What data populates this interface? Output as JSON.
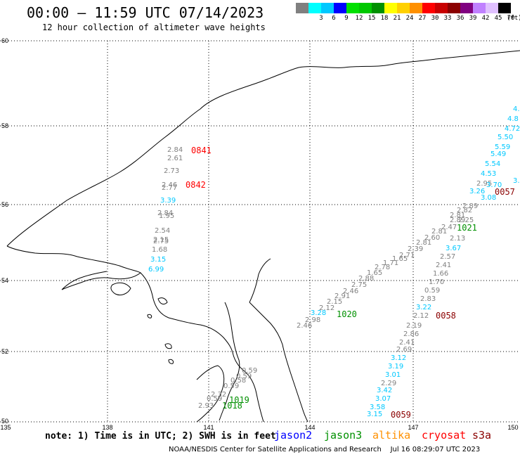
{
  "header": {
    "title": "00:00 – 11:59 UTC 07/14/2023",
    "subtitle": "12 hour collection of altimeter wave heights"
  },
  "legend_scale": {
    "unit": "(ft)",
    "bins": [
      {
        "color": "#808080",
        "label": ""
      },
      {
        "color": "#00ffff",
        "label": "3"
      },
      {
        "color": "#00c8ff",
        "label": "6"
      },
      {
        "color": "#0000ff",
        "label": "9"
      },
      {
        "color": "#00e000",
        "label": "12"
      },
      {
        "color": "#00c800",
        "label": "15"
      },
      {
        "color": "#009000",
        "label": "18"
      },
      {
        "color": "#ffff00",
        "label": "21"
      },
      {
        "color": "#ffd000",
        "label": "24"
      },
      {
        "color": "#ff9000",
        "label": "27"
      },
      {
        "color": "#ff0000",
        "label": "30"
      },
      {
        "color": "#c80000",
        "label": "33"
      },
      {
        "color": "#8b0000",
        "label": "36"
      },
      {
        "color": "#800080",
        "label": "39"
      },
      {
        "color": "#c080ff",
        "label": "42"
      },
      {
        "color": "#e0c0ff",
        "label": "45"
      },
      {
        "color": "#000000",
        "label": "70"
      }
    ]
  },
  "map": {
    "lon_labels": [
      "135",
      "138",
      "141",
      "144",
      "147",
      "150"
    ],
    "lat_labels": [
      "60",
      "58",
      "56",
      "54",
      "52",
      "50"
    ],
    "observations": [
      {
        "v": "2.84",
        "c": "#808080"
      },
      {
        "v": "2.61",
        "c": "#808080"
      },
      {
        "v": "2.73",
        "c": "#808080"
      },
      {
        "v": "2.46",
        "c": "#808080"
      },
      {
        "v": "2.77",
        "c": "#808080"
      },
      {
        "v": "3.39",
        "c": "#00c8ff"
      },
      {
        "v": "2.84",
        "c": "#808080"
      },
      {
        "v": "1.95",
        "c": "#808080"
      },
      {
        "v": "2.54",
        "c": "#808080"
      },
      {
        "v": "2.15",
        "c": "#808080"
      },
      {
        "v": "2.75",
        "c": "#808080"
      },
      {
        "v": "1.68",
        "c": "#808080"
      },
      {
        "v": "3.15",
        "c": "#00c8ff"
      },
      {
        "v": "6.99",
        "c": "#00c8ff"
      },
      {
        "v": "2.46",
        "c": "#808080"
      },
      {
        "v": "2.98",
        "c": "#808080"
      },
      {
        "v": "3.28",
        "c": "#00c8ff"
      },
      {
        "v": "2.12",
        "c": "#808080"
      },
      {
        "v": "2.15",
        "c": "#808080"
      },
      {
        "v": "2.91",
        "c": "#808080"
      },
      {
        "v": "2.46",
        "c": "#808080"
      },
      {
        "v": "2.75",
        "c": "#808080"
      },
      {
        "v": "2.88",
        "c": "#808080"
      },
      {
        "v": "1.65",
        "c": "#808080"
      },
      {
        "v": "2.78",
        "c": "#808080"
      },
      {
        "v": "1.71",
        "c": "#808080"
      },
      {
        "v": "1.65",
        "c": "#808080"
      },
      {
        "v": "2.71",
        "c": "#808080"
      },
      {
        "v": "2.39",
        "c": "#808080"
      },
      {
        "v": "2.81",
        "c": "#808080"
      },
      {
        "v": "2.60",
        "c": "#808080"
      },
      {
        "v": "2.81",
        "c": "#808080"
      },
      {
        "v": "2.47",
        "c": "#808080"
      },
      {
        "v": "2.89",
        "c": "#808080"
      },
      {
        "v": "2.25",
        "c": "#808080"
      },
      {
        "v": "2.81",
        "c": "#808080"
      },
      {
        "v": "2.82",
        "c": "#808080"
      },
      {
        "v": "2.89",
        "c": "#808080"
      },
      {
        "v": "2.95",
        "c": "#808080"
      },
      {
        "v": "3.26",
        "c": "#00c8ff"
      },
      {
        "v": "3.08",
        "c": "#00c8ff"
      },
      {
        "v": "3.70",
        "c": "#00c8ff"
      },
      {
        "v": "3.02",
        "c": "#00c8ff"
      },
      {
        "v": "4.53",
        "c": "#00c8ff"
      },
      {
        "v": "5.54",
        "c": "#00c8ff"
      },
      {
        "v": "5.49",
        "c": "#00c8ff"
      },
      {
        "v": "5.59",
        "c": "#00c8ff"
      },
      {
        "v": "5.50",
        "c": "#00c8ff"
      },
      {
        "v": "4.72",
        "c": "#00c8ff"
      },
      {
        "v": "4.8",
        "c": "#00c8ff"
      },
      {
        "v": "4.",
        "c": "#00c8ff"
      },
      {
        "v": "2.13",
        "c": "#808080"
      },
      {
        "v": "3.67",
        "c": "#00c8ff"
      },
      {
        "v": "2.57",
        "c": "#808080"
      },
      {
        "v": "2.41",
        "c": "#808080"
      },
      {
        "v": "1.66",
        "c": "#808080"
      },
      {
        "v": "1.70",
        "c": "#808080"
      },
      {
        "v": "0.59",
        "c": "#808080"
      },
      {
        "v": "2.83",
        "c": "#808080"
      },
      {
        "v": "3.22",
        "c": "#00c8ff"
      },
      {
        "v": "2.12",
        "c": "#808080"
      },
      {
        "v": "2.19",
        "c": "#808080"
      },
      {
        "v": "2.86",
        "c": "#808080"
      },
      {
        "v": "2.41",
        "c": "#808080"
      },
      {
        "v": "2.69",
        "c": "#808080"
      },
      {
        "v": "3.12",
        "c": "#00c8ff"
      },
      {
        "v": "3.19",
        "c": "#00c8ff"
      },
      {
        "v": "3.01",
        "c": "#00c8ff"
      },
      {
        "v": "2.29",
        "c": "#808080"
      },
      {
        "v": "3.42",
        "c": "#00c8ff"
      },
      {
        "v": "3.07",
        "c": "#00c8ff"
      },
      {
        "v": "3.58",
        "c": "#00c8ff"
      },
      {
        "v": "3.15",
        "c": "#00c8ff"
      },
      {
        "v": "0.59",
        "c": "#808080"
      },
      {
        "v": "0.59",
        "c": "#808080"
      },
      {
        "v": "0.58",
        "c": "#808080"
      },
      {
        "v": "0.59",
        "c": "#808080"
      },
      {
        "v": "2.32",
        "c": "#808080"
      },
      {
        "v": "0.59",
        "c": "#808080"
      },
      {
        "v": "2.93",
        "c": "#808080"
      }
    ],
    "time_tags": [
      {
        "t": "0841",
        "c": "#ff0000"
      },
      {
        "t": "0842",
        "c": "#ff0000"
      },
      {
        "t": "1020",
        "c": "#009000"
      },
      {
        "t": "1021",
        "c": "#009000"
      },
      {
        "t": "0057",
        "c": "#8b0000"
      },
      {
        "t": "0058",
        "c": "#8b0000"
      },
      {
        "t": "0059",
        "c": "#8b0000"
      },
      {
        "t": "1019",
        "c": "#009000"
      },
      {
        "t": "1018",
        "c": "#009000"
      }
    ]
  },
  "footer": {
    "note": "note: 1) Time is in UTC; 2) SWH is in feet",
    "satellites": [
      {
        "name": "jason2",
        "color": "#0000ff"
      },
      {
        "name": "jason3",
        "color": "#009000"
      },
      {
        "name": "altika",
        "color": "#ff9000"
      },
      {
        "name": "cryosat",
        "color": "#ff0000"
      },
      {
        "name": "s3a",
        "color": "#8b0000"
      }
    ],
    "credit": "NOAA/NESDIS Center for Satellite Applications and Research    Jul 16 08:29:07 UTC 2023"
  }
}
